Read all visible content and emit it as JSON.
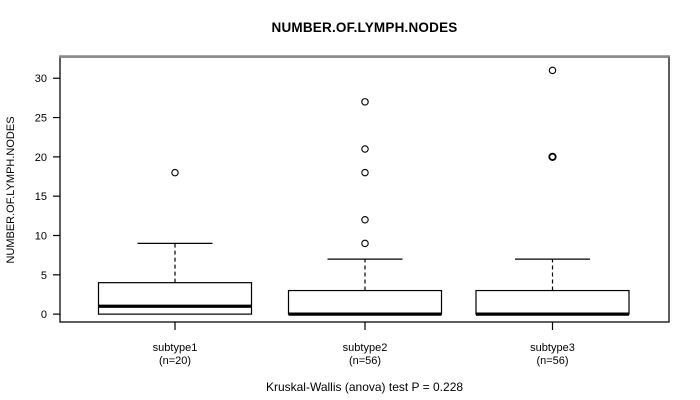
{
  "title": "NUMBER.OF.LYMPH.NODES",
  "colors": {
    "line": "#000000",
    "frame_top": "#8a8a8a",
    "background": "#ffffff"
  },
  "chart_data": {
    "type": "boxplot",
    "title": "NUMBER.OF.LYMPH.NODES",
    "ylabel": "NUMBER.OF.LYMPH.NODES",
    "xlabel": "",
    "yticks": [
      0,
      5,
      10,
      15,
      20,
      25,
      30
    ],
    "ylim": [
      -1,
      32.7
    ],
    "grid": false,
    "legend": "none",
    "categories": [
      "subtype1",
      "subtype2",
      "subtype3"
    ],
    "category_sublabels": [
      "(n=20)",
      "(n=56)",
      "(n=56)"
    ],
    "groups": [
      {
        "label": "subtype1",
        "sublabel": "(n=20)",
        "n": 20,
        "whisker_low": 0,
        "q1": 0,
        "median": 1,
        "q3": 4,
        "whisker_high": 9,
        "outliers": [
          18
        ],
        "bold_outliers": []
      },
      {
        "label": "subtype2",
        "sublabel": "(n=56)",
        "n": 56,
        "whisker_low": 0,
        "q1": 0,
        "median": 0,
        "q3": 3,
        "whisker_high": 7,
        "outliers": [
          9,
          12,
          18,
          21,
          27
        ],
        "bold_outliers": []
      },
      {
        "label": "subtype3",
        "sublabel": "(n=56)",
        "n": 56,
        "whisker_low": 0,
        "q1": 0,
        "median": 0,
        "q3": 3,
        "whisker_high": 7,
        "outliers": [
          20,
          31
        ],
        "bold_outliers": [
          20
        ]
      }
    ],
    "annotation": "Kruskal-Wallis (anova) test P = 0.228"
  }
}
